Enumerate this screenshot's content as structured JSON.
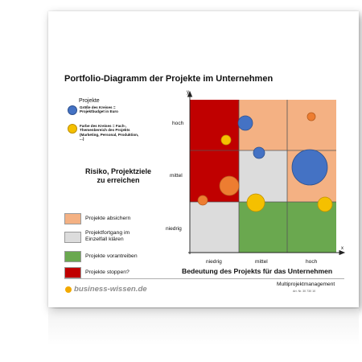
{
  "title": "Portfolio-Diagramm der Projekte im Unternehmen",
  "legend": {
    "heading": "Projekte",
    "size_text": "Größe des Kreises = Projektbudget in Euro",
    "color_text": "Farbe des Kreises = Fach-, Themenbereich des Projekts (Marketing, Personal, Produktion, ...)"
  },
  "risk_label_line1": "Risiko, Projektziele",
  "risk_label_line2": "zu erreichen",
  "actions": [
    {
      "label": "Projekte absichern",
      "color": "#f4b183"
    },
    {
      "label": "Projektfortgang im Einzelfall klären",
      "color": "#dcdcdc"
    },
    {
      "label": "Projekte vorantreiben",
      "color": "#6aa84f"
    },
    {
      "label": "Projekte stoppen?",
      "color": "#c00000"
    }
  ],
  "axis": {
    "y_letter": "y",
    "x_letter": "x",
    "y_levels": [
      "hoch",
      "mittel",
      "niedrig"
    ],
    "x_levels": [
      "niedrig",
      "mittel",
      "hoch"
    ],
    "x_title": "Bedeutung des Projekts für das Unternehmen"
  },
  "grid_colors": [
    [
      "#c00000",
      "#f4b183",
      "#f4b183"
    ],
    [
      "#c00000",
      "#dcdcdc",
      "#f4b183"
    ],
    [
      "#dcdcdc",
      "#6aa84f",
      "#6aa84f"
    ]
  ],
  "bubble_colors": {
    "blue": "#4472c4",
    "orange": "#ed7d31",
    "yellow": "#f5c000"
  },
  "brand": "business-wissen.de",
  "footer_title": "Multiprojektmanagement",
  "footer_art": "Art. Nr. 30 730 10"
}
